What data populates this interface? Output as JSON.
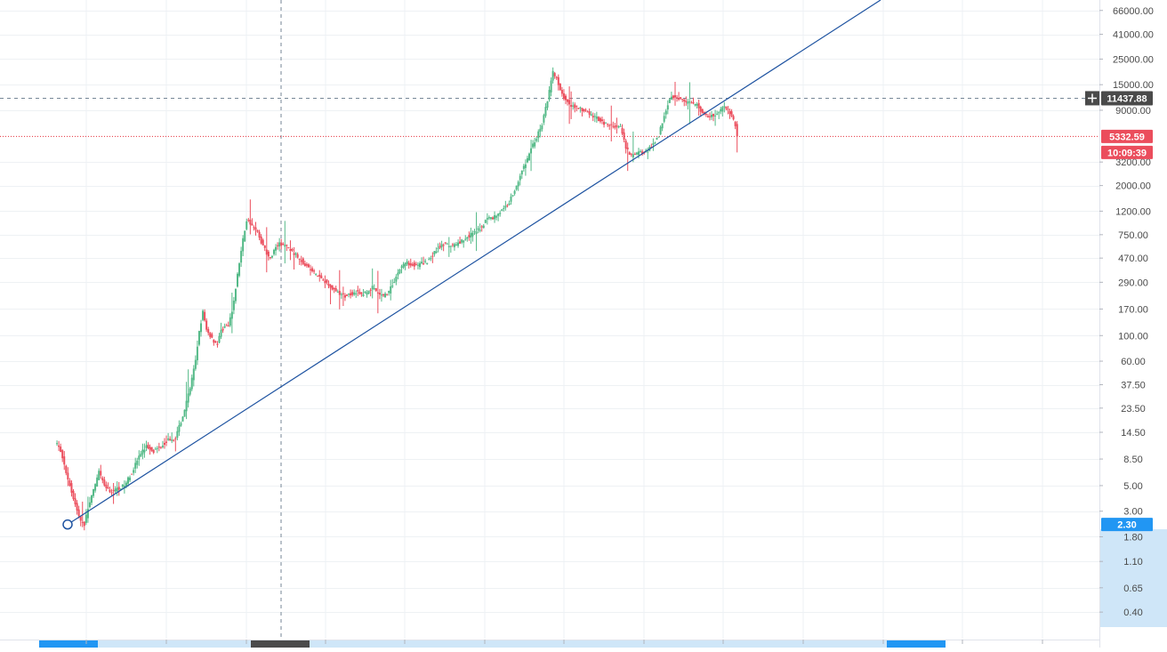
{
  "chart_data": {
    "type": "candlestick",
    "scale": "log",
    "grid": true,
    "colors": {
      "up": "#53b987",
      "down": "#eb4d5c",
      "trendline": "#1e53a1",
      "crosshair": "#758696",
      "price_line": "#e5303d",
      "axis_bg_highlight": "#cfe6f8",
      "badge_dark": "#4a4a4a",
      "badge_blue": "#2196f3",
      "badge_red": "#eb4d5c"
    },
    "y_ticks": [
      {
        "value": 66000,
        "label": "66000.00"
      },
      {
        "value": 41000,
        "label": "41000.00"
      },
      {
        "value": 25000,
        "label": "25000.00"
      },
      {
        "value": 15000,
        "label": "15000.00"
      },
      {
        "value": 9000,
        "label": "9000.00"
      },
      {
        "value": 3200,
        "label": "3200.00"
      },
      {
        "value": 2000,
        "label": "2000.00"
      },
      {
        "value": 1200,
        "label": "1200.00"
      },
      {
        "value": 750,
        "label": "750.00"
      },
      {
        "value": 470,
        "label": "470.00"
      },
      {
        "value": 290,
        "label": "290.00"
      },
      {
        "value": 170,
        "label": "170.00"
      },
      {
        "value": 100,
        "label": "100.00"
      },
      {
        "value": 60,
        "label": "60.00"
      },
      {
        "value": 37.5,
        "label": "37.50"
      },
      {
        "value": 23.5,
        "label": "23.50"
      },
      {
        "value": 14.5,
        "label": "14.50"
      },
      {
        "value": 8.5,
        "label": "8.50"
      },
      {
        "value": 5,
        "label": "5.00"
      },
      {
        "value": 3,
        "label": "3.00"
      },
      {
        "value": 1.8,
        "label": "1.80"
      },
      {
        "value": 1.1,
        "label": "1.10"
      },
      {
        "value": 0.65,
        "label": "0.65"
      },
      {
        "value": 0.4,
        "label": "0.40"
      }
    ],
    "crosshair_price": {
      "value": 11437.88,
      "label": "11437.88"
    },
    "last_price": {
      "value": 5332.59,
      "label": "5332.59"
    },
    "countdown": "10:09:39",
    "trendline_anchor": {
      "value": 2.3,
      "label": "2.30"
    },
    "trend": [
      [
        0,
        12
      ],
      [
        3,
        10
      ],
      [
        6,
        6.5
      ],
      [
        9,
        4.5
      ],
      [
        12,
        3.0
      ],
      [
        14,
        2.5
      ],
      [
        16,
        2.3
      ],
      [
        18,
        3.2
      ],
      [
        21,
        4.5
      ],
      [
        24,
        6.5
      ],
      [
        27,
        5.0
      ],
      [
        30,
        4.4
      ],
      [
        34,
        4.7
      ],
      [
        38,
        5.0
      ],
      [
        42,
        6.5
      ],
      [
        46,
        9
      ],
      [
        50,
        11
      ],
      [
        54,
        10
      ],
      [
        58,
        11
      ],
      [
        62,
        12.5
      ],
      [
        66,
        13
      ],
      [
        70,
        20
      ],
      [
        74,
        35
      ],
      [
        77,
        60
      ],
      [
        79,
        110
      ],
      [
        81,
        160
      ],
      [
        83,
        110
      ],
      [
        85,
        100
      ],
      [
        87,
        90
      ],
      [
        89,
        85
      ],
      [
        91,
        110
      ],
      [
        93,
        120
      ],
      [
        95,
        120
      ],
      [
        97,
        160
      ],
      [
        99,
        260
      ],
      [
        101,
        430
      ],
      [
        103,
        680
      ],
      [
        105,
        1000
      ],
      [
        107,
        950
      ],
      [
        109,
        850
      ],
      [
        111,
        780
      ],
      [
        113,
        650
      ],
      [
        115,
        560
      ],
      [
        117,
        480
      ],
      [
        119,
        500
      ],
      [
        121,
        590
      ],
      [
        123,
        620
      ],
      [
        126,
        610
      ],
      [
        129,
        550
      ],
      [
        132,
        500
      ],
      [
        135,
        450
      ],
      [
        138,
        400
      ],
      [
        141,
        360
      ],
      [
        144,
        330
      ],
      [
        147,
        310
      ],
      [
        150,
        270
      ],
      [
        153,
        250
      ],
      [
        156,
        230
      ],
      [
        159,
        220
      ],
      [
        162,
        230
      ],
      [
        165,
        240
      ],
      [
        168,
        225
      ],
      [
        171,
        240
      ],
      [
        174,
        260
      ],
      [
        177,
        230
      ],
      [
        180,
        220
      ],
      [
        183,
        240
      ],
      [
        186,
        300
      ],
      [
        189,
        380
      ],
      [
        192,
        430
      ],
      [
        195,
        420
      ],
      [
        198,
        400
      ],
      [
        201,
        420
      ],
      [
        204,
        440
      ],
      [
        207,
        500
      ],
      [
        210,
        580
      ],
      [
        213,
        620
      ],
      [
        216,
        600
      ],
      [
        219,
        610
      ],
      [
        222,
        650
      ],
      [
        225,
        700
      ],
      [
        228,
        750
      ],
      [
        231,
        800
      ],
      [
        234,
        880
      ],
      [
        237,
        1050
      ],
      [
        240,
        1050
      ],
      [
        243,
        1150
      ],
      [
        246,
        1250
      ],
      [
        249,
        1450
      ],
      [
        252,
        1800
      ],
      [
        255,
        2500
      ],
      [
        258,
        3100
      ],
      [
        261,
        4200
      ],
      [
        264,
        5200
      ],
      [
        267,
        6800
      ],
      [
        270,
        11000
      ],
      [
        273,
        19000
      ],
      [
        275,
        17000
      ],
      [
        277,
        13000
      ],
      [
        280,
        11000
      ],
      [
        283,
        10000
      ],
      [
        286,
        9500
      ],
      [
        289,
        9000
      ],
      [
        292,
        8500
      ],
      [
        295,
        8000
      ],
      [
        298,
        7500
      ],
      [
        301,
        7000
      ],
      [
        304,
        6700
      ],
      [
        307,
        6500
      ],
      [
        310,
        6400
      ],
      [
        313,
        4200
      ],
      [
        316,
        3600
      ],
      [
        319,
        3800
      ],
      [
        322,
        3900
      ],
      [
        325,
        4000
      ],
      [
        328,
        4600
      ],
      [
        331,
        5500
      ],
      [
        334,
        8200
      ],
      [
        337,
        11500
      ],
      [
        340,
        12000
      ],
      [
        343,
        11200
      ],
      [
        346,
        10500
      ],
      [
        349,
        10300
      ],
      [
        352,
        10000
      ],
      [
        355,
        8500
      ],
      [
        358,
        8000
      ],
      [
        361,
        8200
      ],
      [
        364,
        8700
      ],
      [
        367,
        10000
      ],
      [
        369,
        9000
      ],
      [
        371,
        8000
      ],
      [
        373,
        6800
      ],
      [
        374,
        5332.59
      ]
    ]
  }
}
